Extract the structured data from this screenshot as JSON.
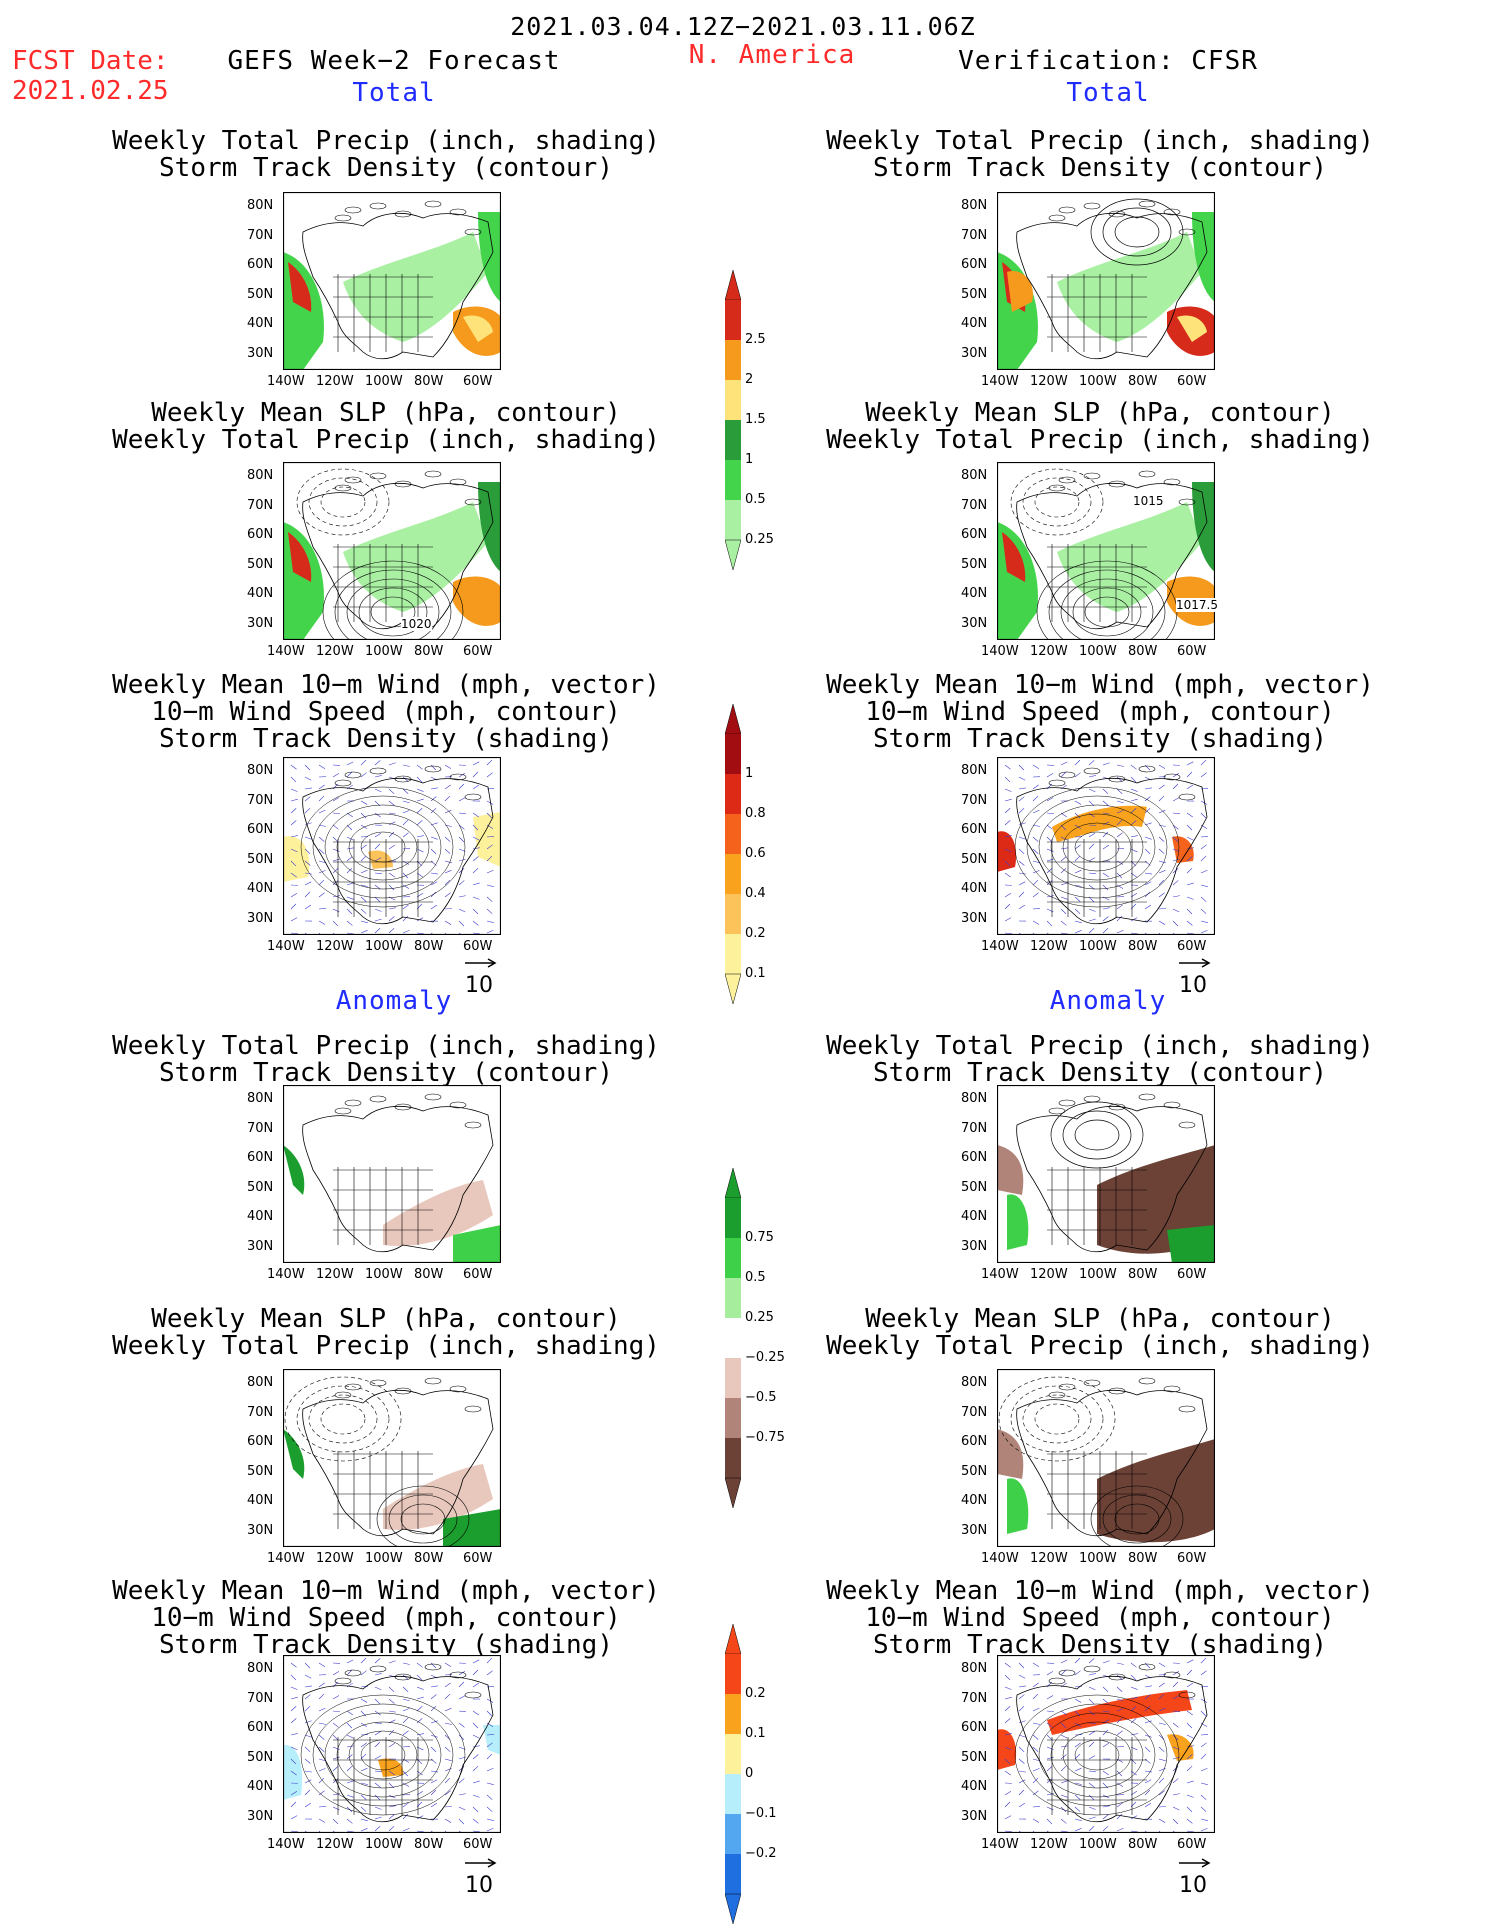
{
  "header": {
    "date_range": "2021.03.04.12Z−2021.03.11.06Z",
    "fcst_label": "FCST Date:",
    "fcst_date": "2021.02.25",
    "left_title": "GEFS Week−2 Forecast",
    "region": "N. America",
    "right_title": "Verification: CFSR"
  },
  "sections": {
    "total": "Total",
    "anomaly": "Anomaly"
  },
  "panel_titles": {
    "precip_track": [
      "Weekly Total Precip (inch, shading)",
      "Storm Track Density (contour)"
    ],
    "slp_precip": [
      "Weekly Mean SLP (hPa, contour)",
      "Weekly Total Precip (inch, shading)"
    ],
    "wind_track": [
      "Weekly Mean 10−m Wind (mph, vector)",
      "10−m Wind Speed (mph, contour)",
      "Storm Track Density (shading)"
    ]
  },
  "axes": {
    "lat_ticks": [
      "80N",
      "70N",
      "60N",
      "50N",
      "40N",
      "30N"
    ],
    "lon_ticks": [
      "140W",
      "120W",
      "100W",
      "80W",
      "60W"
    ]
  },
  "contour_labels": {
    "fcst_total_slp": "1020",
    "cfsr_total_slp_a": "1015",
    "cfsr_total_slp_b": "1017.5"
  },
  "vector_reference": "10",
  "colorbars": {
    "precip_total": {
      "labels": [
        "2.5",
        "2",
        "1.5",
        "1",
        "0.5",
        "0.25"
      ],
      "colors": [
        "#d62b1a",
        "#f59a1c",
        "#fde37a",
        "#2a9d3a",
        "#44d44c",
        "#a9f0a3"
      ]
    },
    "track_total": {
      "labels": [
        "1",
        "0.8",
        "0.6",
        "0.4",
        "0.2",
        "0.1"
      ],
      "colors": [
        "#a10d10",
        "#dd2a16",
        "#f5621b",
        "#f9a21e",
        "#fcc35a",
        "#fdf19b"
      ]
    },
    "precip_anom": {
      "labels": [
        "0.75",
        "0.5",
        "0.25",
        "−0.25",
        "−0.5",
        "−0.75"
      ],
      "colors": [
        "#1c9e2e",
        "#3dd048",
        "#a6ee9d",
        "#ffffff",
        "#e8c8bd",
        "#b08478",
        "#6c4236"
      ]
    },
    "track_anom": {
      "labels": [
        "0.2",
        "0.1",
        "0",
        "−0.1",
        "−0.2"
      ],
      "colors": [
        "#f5461a",
        "#f9a21e",
        "#fdf19b",
        "#b6effb",
        "#52a7f0",
        "#1f6fe0"
      ]
    }
  }
}
